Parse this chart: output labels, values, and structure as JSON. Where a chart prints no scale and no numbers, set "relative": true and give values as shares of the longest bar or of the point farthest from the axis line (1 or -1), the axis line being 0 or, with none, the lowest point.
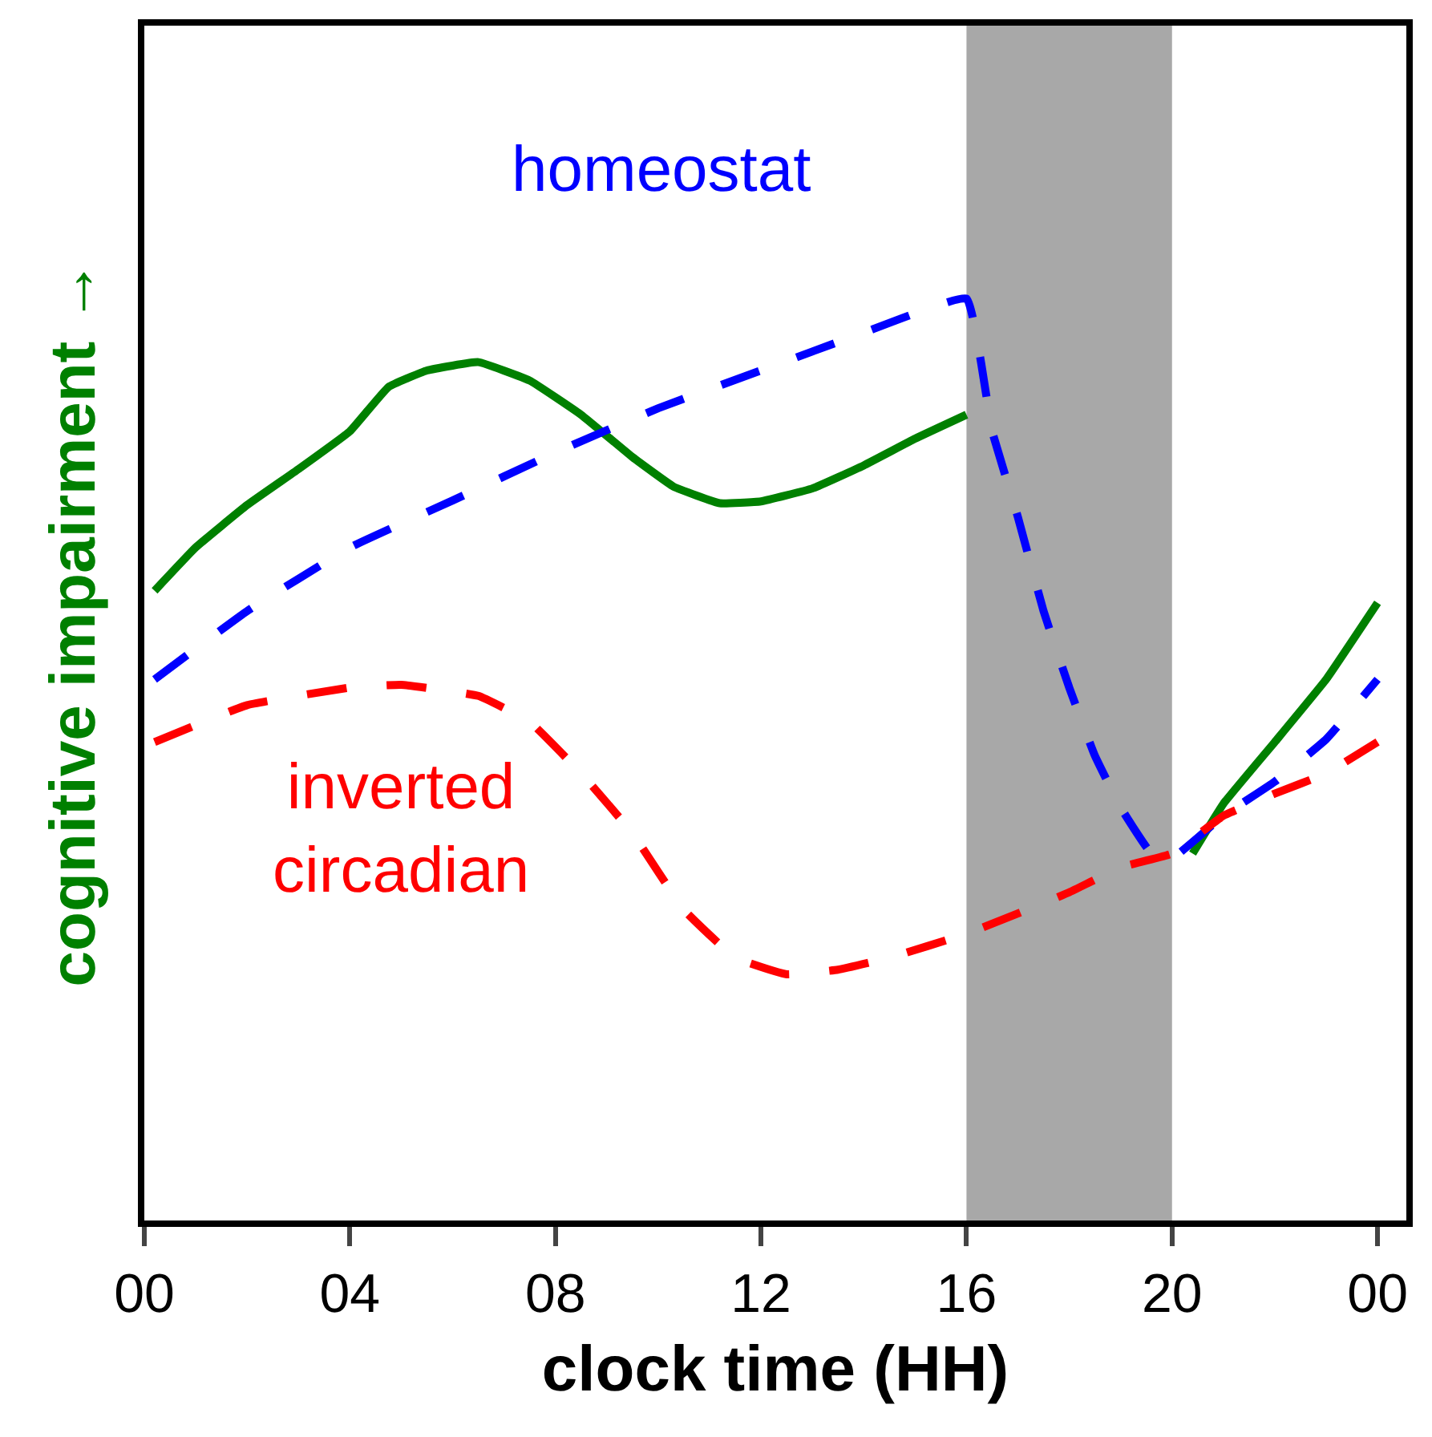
{
  "chart_data": {
    "type": "line",
    "xlabel": "clock time (HH)",
    "ylabel": "cognitive impairment →",
    "relative": true,
    "grid": false,
    "legend": false,
    "marker": "none",
    "xlim": [
      0,
      24.56
    ],
    "xticks": [
      {
        "value": 0,
        "label": "00"
      },
      {
        "value": 4,
        "label": "04"
      },
      {
        "value": 8,
        "label": "08"
      },
      {
        "value": 12,
        "label": "12"
      },
      {
        "value": 16,
        "label": "16"
      },
      {
        "value": 20,
        "label": "20"
      },
      {
        "value": 24,
        "label": "00"
      }
    ],
    "x": [
      0.2,
      1,
      2,
      3,
      4,
      4.75,
      5.5,
      6.5,
      7.5,
      8.5,
      9.5,
      10.3,
      11.2,
      12,
      13,
      14,
      15,
      16,
      18,
      20.4,
      21,
      22,
      23,
      24
    ],
    "series": [
      {
        "color": "#008000",
        "line_style": "solid",
        "values": [
          0.683,
          0.73,
          0.776,
          0.815,
          0.856,
          0.904,
          0.922,
          0.931,
          0.911,
          0.874,
          0.828,
          0.796,
          0.778,
          0.78,
          0.794,
          0.819,
          0.848,
          0.874,
          null,
          0.398,
          0.452,
          0.519,
          0.587,
          0.67
        ]
      },
      {
        "name": "homeostat",
        "color": "#0000ff",
        "line_style": "dashed",
        "x": [
          0.2,
          2,
          4,
          6,
          8,
          10,
          12,
          14,
          16,
          16.5,
          17,
          17.5,
          18,
          18.5,
          19,
          19.6,
          20,
          21,
          22,
          23,
          24
        ],
        "values": [
          0.587,
          0.661,
          0.73,
          0.781,
          0.833,
          0.881,
          0.922,
          0.963,
          1.0,
          0.856,
          0.763,
          0.661,
          0.578,
          0.504,
          0.448,
          0.398,
          0.393,
          0.439,
          0.476,
          0.522,
          0.587
        ]
      },
      {
        "name": "inverted circadian",
        "color": "#ff0000",
        "line_style": "dashed",
        "x": [
          0.2,
          2,
          4,
          5,
          6.5,
          7.5,
          8.5,
          9.5,
          10.5,
          11.5,
          12.5,
          13.5,
          14.5,
          16,
          17,
          18,
          19,
          20,
          21,
          22,
          23,
          24
        ],
        "values": [
          0.519,
          0.559,
          0.578,
          0.581,
          0.569,
          0.541,
          0.485,
          0.42,
          0.337,
          0.285,
          0.267,
          0.272,
          0.285,
          0.311,
          0.333,
          0.356,
          0.383,
          0.398,
          0.439,
          0.463,
          0.485,
          0.519
        ]
      }
    ],
    "bands": [
      {
        "axis": "x",
        "from": 16,
        "to": 20,
        "color": "#a8a8a8"
      }
    ]
  }
}
